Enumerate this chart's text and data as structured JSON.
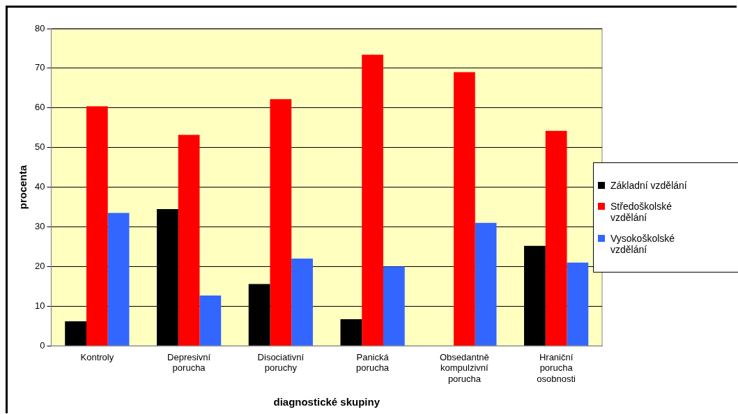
{
  "chart_data": {
    "type": "bar",
    "xlabel": "diagnostické skupiny",
    "ylabel": "procenta",
    "categories": [
      "Kontroly",
      "Depresivní porucha",
      "Disociativní poruchy",
      "Panická porucha",
      "Obsedantně kompulzivní porucha",
      "Hraniční porucha osobnosti"
    ],
    "series": [
      {
        "name": "Základní vzdělání",
        "color": "#000000",
        "values": [
          6.2,
          34.5,
          15.6,
          6.7,
          0,
          25.2
        ]
      },
      {
        "name": "Středoškolské vzdělání",
        "color": "#ff0000",
        "values": [
          60.4,
          53.2,
          62.2,
          73.4,
          69,
          54.2
        ]
      },
      {
        "name": "Vysokoškolské vzdělání",
        "color": "#3366ff",
        "values": [
          33.5,
          12.7,
          22,
          20,
          31,
          21
        ]
      }
    ],
    "ylim": [
      0,
      80
    ],
    "yticks": [
      0,
      10,
      20,
      30,
      40,
      50,
      60,
      70,
      80
    ],
    "grid": "y",
    "legend": "right"
  }
}
